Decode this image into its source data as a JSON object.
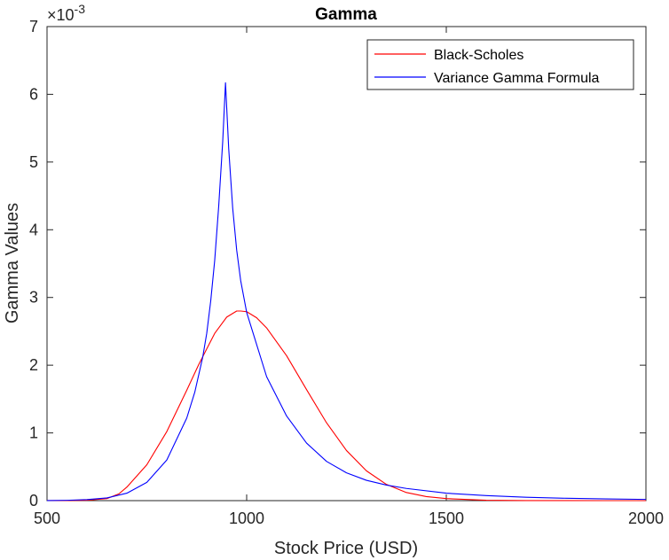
{
  "chart_data": {
    "type": "line",
    "title": "Gamma",
    "xlabel": "Stock Price (USD)",
    "ylabel": "Gamma Values",
    "xlim": [
      500,
      2000
    ],
    "ylim": [
      0,
      0.007
    ],
    "y_exponent_label": "×10",
    "y_exponent_power": "-3",
    "x_ticks": [
      500,
      1000,
      1500,
      2000
    ],
    "y_ticks": [
      0,
      1,
      2,
      3,
      4,
      5,
      6,
      7
    ],
    "x_tick_labels": [
      "500",
      "1000",
      "1500",
      "2000"
    ],
    "y_tick_labels": [
      "0",
      "1",
      "2",
      "3",
      "4",
      "5",
      "6",
      "7"
    ],
    "grid": false,
    "legend_position": "top-right",
    "series": [
      {
        "name": "Black-Scholes",
        "color": "#ff0000",
        "x": [
          500,
          550,
          600,
          650,
          680,
          700,
          750,
          800,
          850,
          880,
          900,
          920,
          950,
          975,
          985,
          1000,
          1025,
          1050,
          1100,
          1150,
          1200,
          1250,
          1300,
          1350,
          1400,
          1450,
          1500,
          1600,
          1700,
          1800,
          1900,
          2000
        ],
        "y": [
          2e-07,
          1e-06,
          5e-06,
          3e-05,
          0.0001,
          0.0002,
          0.00053,
          0.00102,
          0.00163,
          0.00201,
          0.00224,
          0.00247,
          0.00271,
          0.0028,
          0.0028,
          0.00279,
          0.0027,
          0.00255,
          0.00214,
          0.00164,
          0.00115,
          0.00074,
          0.00044,
          0.00024,
          0.00012,
          6e-05,
          3e-05,
          6e-06,
          1e-06,
          2e-07,
          0.0,
          0.0
        ]
      },
      {
        "name": "Variance Gamma Formula",
        "color": "#0000ff",
        "x": [
          500,
          550,
          600,
          650,
          700,
          750,
          800,
          850,
          870,
          890,
          900,
          910,
          920,
          930,
          940,
          947,
          955,
          965,
          975,
          985,
          1000,
          1050,
          1100,
          1150,
          1200,
          1250,
          1300,
          1350,
          1400,
          1500,
          1600,
          1700,
          1800,
          1900,
          2000
        ],
        "y": [
          1e-06,
          5e-06,
          1.5e-05,
          4e-05,
          0.00011,
          0.00027,
          0.0006,
          0.00122,
          0.0016,
          0.00212,
          0.00247,
          0.00295,
          0.00355,
          0.00435,
          0.0053,
          0.00617,
          0.0052,
          0.00432,
          0.0037,
          0.00325,
          0.00278,
          0.00183,
          0.00125,
          0.00085,
          0.00058,
          0.00041,
          0.0003,
          0.00023,
          0.00018,
          0.00011,
          7.5e-05,
          5e-05,
          3.5e-05,
          2.5e-05,
          1.8e-05
        ]
      }
    ]
  }
}
